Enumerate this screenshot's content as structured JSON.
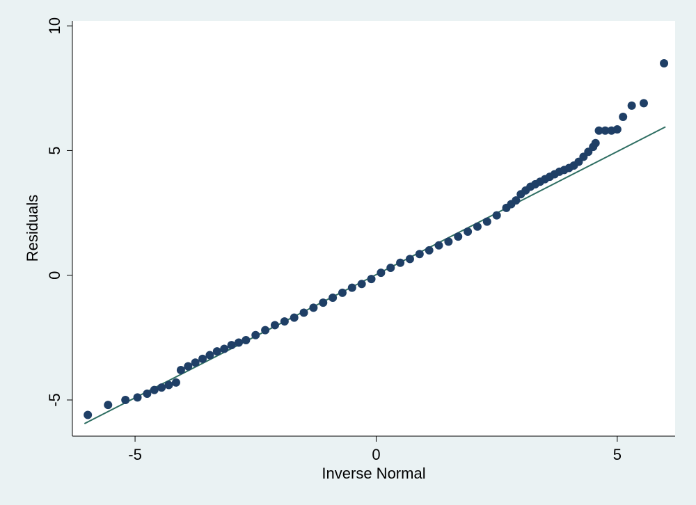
{
  "chart_data": {
    "type": "scatter",
    "xlabel": "Inverse Normal",
    "ylabel": "Residuals",
    "xlim": [
      -6.3,
      6.2
    ],
    "ylim": [
      -6.45,
      10.2
    ],
    "xticks": [
      -5,
      0,
      5
    ],
    "yticks": [
      -5,
      0,
      5,
      10
    ],
    "grid": false,
    "legend": "none",
    "colors": {
      "background": "#eaf2f3",
      "plot_area": "#ffffff",
      "points": "#1f3f66",
      "reference_line": "#2e6e62"
    },
    "reference_line": {
      "x": [
        -6.05,
        6.0
      ],
      "y": [
        -5.95,
        5.95
      ]
    },
    "points": {
      "x": [
        -5.98,
        -5.56,
        -5.2,
        -4.95,
        -4.75,
        -4.6,
        -4.45,
        -4.3,
        -4.15,
        -4.05,
        -3.9,
        -3.75,
        -3.6,
        -3.45,
        -3.3,
        -3.15,
        -3.0,
        -2.85,
        -2.7,
        -2.5,
        -2.3,
        -2.1,
        -1.9,
        -1.7,
        -1.5,
        -1.3,
        -1.1,
        -0.9,
        -0.7,
        -0.5,
        -0.3,
        -0.1,
        0.1,
        0.3,
        0.5,
        0.7,
        0.9,
        1.1,
        1.3,
        1.5,
        1.7,
        1.9,
        2.1,
        2.3,
        2.5,
        2.7,
        2.8,
        2.9,
        3.0,
        3.1,
        3.2,
        3.3,
        3.4,
        3.5,
        3.6,
        3.7,
        3.8,
        3.9,
        4.0,
        4.1,
        4.2,
        4.3,
        4.4,
        4.5,
        4.55,
        4.62,
        4.75,
        4.88,
        5.0,
        5.12,
        5.3,
        5.55,
        5.97
      ],
      "y": [
        -5.6,
        -5.2,
        -5.0,
        -4.9,
        -4.75,
        -4.6,
        -4.5,
        -4.4,
        -4.3,
        -3.8,
        -3.65,
        -3.5,
        -3.35,
        -3.2,
        -3.05,
        -2.95,
        -2.8,
        -2.7,
        -2.6,
        -2.4,
        -2.2,
        -2.0,
        -1.85,
        -1.7,
        -1.5,
        -1.3,
        -1.1,
        -0.9,
        -0.7,
        -0.5,
        -0.35,
        -0.15,
        0.1,
        0.3,
        0.5,
        0.65,
        0.85,
        1.0,
        1.2,
        1.35,
        1.55,
        1.75,
        1.95,
        2.15,
        2.4,
        2.7,
        2.85,
        3.0,
        3.25,
        3.4,
        3.55,
        3.65,
        3.75,
        3.85,
        3.95,
        4.05,
        4.15,
        4.22,
        4.3,
        4.4,
        4.55,
        4.75,
        4.95,
        5.15,
        5.3,
        5.8,
        5.8,
        5.8,
        5.85,
        6.35,
        6.8,
        6.9,
        8.5
      ]
    }
  }
}
